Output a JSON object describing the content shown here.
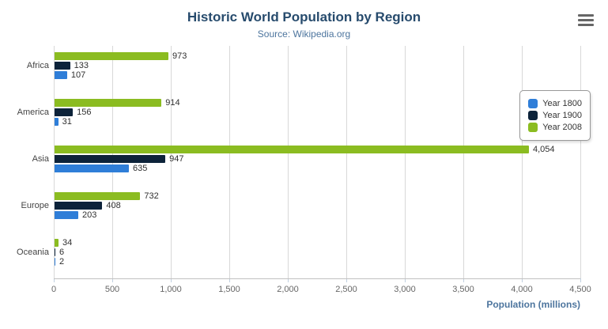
{
  "header": {
    "title": "Historic World Population by Region",
    "subtitle": "Source: Wikipedia.org"
  },
  "menu": {
    "icon": "hamburger-icon"
  },
  "chart_data": {
    "type": "bar",
    "orientation": "horizontal",
    "title": "Historic World Population by Region",
    "subtitle": "Source: Wikipedia.org",
    "categories": [
      "Africa",
      "America",
      "Asia",
      "Europe",
      "Oceania"
    ],
    "series": [
      {
        "name": "Year 1800",
        "color": "#2f7ed8",
        "values": [
          107,
          31,
          635,
          203,
          2
        ]
      },
      {
        "name": "Year 1900",
        "color": "#0d233a",
        "values": [
          133,
          156,
          947,
          408,
          6
        ]
      },
      {
        "name": "Year 2008",
        "color": "#8bbc21",
        "values": [
          973,
          914,
          4054,
          732,
          34
        ]
      }
    ],
    "bar_order_top_to_bottom": [
      "Year 2008",
      "Year 1900",
      "Year 1800"
    ],
    "xlabel": "Population (millions)",
    "ylabel": "",
    "xlim": [
      0,
      4500
    ],
    "xticks": [
      0,
      500,
      1000,
      1500,
      2000,
      2500,
      3000,
      3500,
      4000,
      4500
    ],
    "xtick_labels": [
      "0",
      "500",
      "1,000",
      "1,500",
      "2,000",
      "2,500",
      "3,000",
      "3,500",
      "4,000",
      "4,500"
    ],
    "data_labels": true,
    "grid": true,
    "legend_position": "right",
    "legend_entries": [
      "Year 1800",
      "Year 1900",
      "Year 2008"
    ]
  }
}
